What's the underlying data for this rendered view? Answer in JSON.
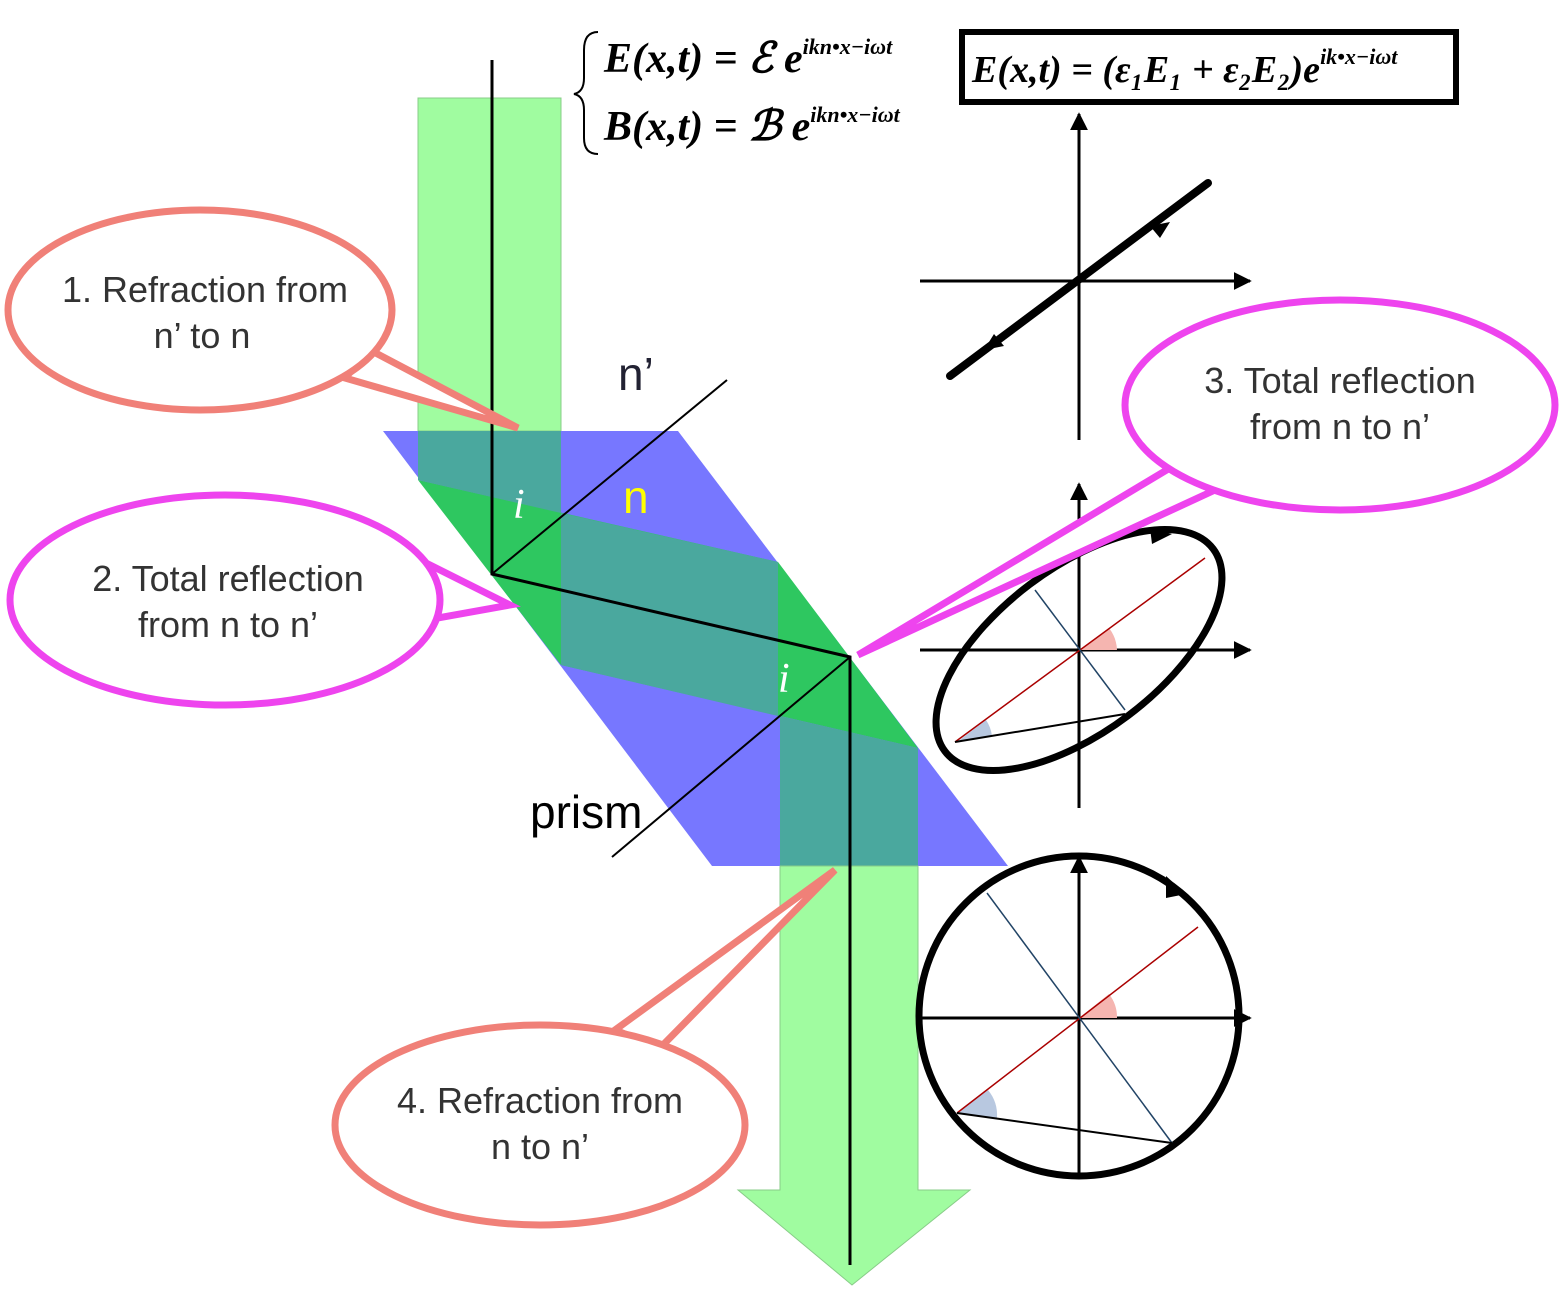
{
  "equations": {
    "system": [
      {
        "main": "E(x,t) = ℰ e",
        "exp": "ikn•x−iωt"
      },
      {
        "main": "B(x,t) = ℬ e",
        "exp": "ikn•x−iωt"
      }
    ],
    "boxed": {
      "main": "E(x,t) = (ε₁E₁ + ε₂E₂)e",
      "exp": "ik•x−iωt"
    }
  },
  "labels": {
    "n_prime": "n’",
    "n": "n",
    "angle_1": "i",
    "angle_2": "i",
    "prism": "prism"
  },
  "callouts": [
    {
      "lines": [
        "1. Refraction from",
        "n’ to n"
      ]
    },
    {
      "lines": [
        "2. Total reflection",
        "from n to n’"
      ]
    },
    {
      "lines": [
        "3. Total reflection",
        "from n to n’"
      ]
    },
    {
      "lines": [
        "4. Refraction from",
        "n to n’"
      ]
    }
  ]
}
